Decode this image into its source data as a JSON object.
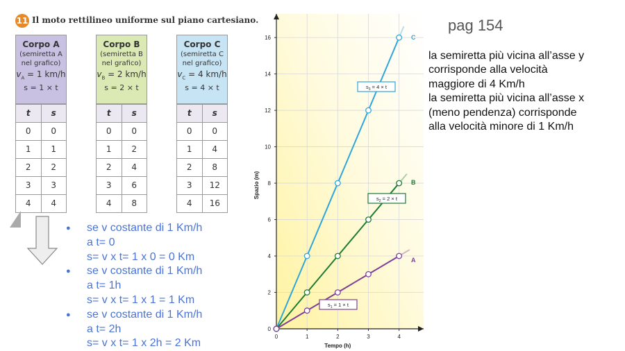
{
  "header": {
    "number": "11",
    "title": "Il moto rettilineo uniforme sul piano cartesiano."
  },
  "tables": [
    {
      "title": "Corpo A",
      "subtitle": [
        "(semiretta A",
        "nel grafico)"
      ],
      "velocity": {
        "symbol": "v",
        "sub": "A",
        "rest": " = 1 km/h"
      },
      "formula": "s = 1 × t",
      "columns": [
        "t",
        "s"
      ],
      "rows": [
        [
          0,
          0
        ],
        [
          1,
          1
        ],
        [
          2,
          2
        ],
        [
          3,
          3
        ],
        [
          4,
          4
        ]
      ],
      "color": "#c9c1e2"
    },
    {
      "title": "Corpo B",
      "subtitle": [
        "(semiretta B",
        "nel grafico)"
      ],
      "velocity": {
        "symbol": "v",
        "sub": "B",
        "rest": " = 2 km/h"
      },
      "formula": "s = 2 × t",
      "columns": [
        "t",
        "s"
      ],
      "rows": [
        [
          0,
          0
        ],
        [
          1,
          2
        ],
        [
          2,
          4
        ],
        [
          3,
          6
        ],
        [
          4,
          8
        ]
      ],
      "color": "#dbe9b4"
    },
    {
      "title": "Corpo C",
      "subtitle": [
        "(semiretta C",
        "nel grafico)"
      ],
      "velocity": {
        "symbol": "v",
        "sub": "C",
        "rest": " = 4 km/h"
      },
      "formula": "s = 4 × t",
      "columns": [
        "t",
        "s"
      ],
      "rows": [
        [
          0,
          0
        ],
        [
          1,
          4
        ],
        [
          2,
          8
        ],
        [
          3,
          12
        ],
        [
          4,
          16
        ]
      ],
      "color": "#c7e4f4"
    }
  ],
  "notes": [
    [
      "se v costante di 1 Km/h",
      "a t= 0",
      "s= v x t= 1 x 0 = 0 Km"
    ],
    [
      "se v costante di 1 Km/h",
      "a t= 1h",
      "s= v x t= 1 x 1 = 1 Km"
    ],
    [
      "se v costante di 1 Km/h",
      "a t= 2h",
      "s= v x t= 1 x 2h = 2 Km"
    ]
  ],
  "page_ref": "pag 154",
  "explanation": [
    "la semiretta più vicina all’asse y",
    "corrisponde alla velocità",
    "maggiore di 4 Km/h",
    "la semiretta più vicina all’asse x",
    "(meno pendenza) corrisponde",
    "alla velocità minore di 1 Km/h"
  ],
  "chart_data": {
    "type": "line",
    "xlabel": "Tempo (h)",
    "ylabel": "Spazio (m)",
    "x": [
      0,
      1,
      2,
      3,
      4
    ],
    "series": [
      {
        "name": "C",
        "color": "#2ea6dc",
        "values": [
          0,
          4,
          8,
          12,
          16
        ],
        "formula": {
          "symbol": "s",
          "sub": "3",
          "rest": " = 4 × t"
        }
      },
      {
        "name": "B",
        "color": "#1f7a35",
        "values": [
          0,
          2,
          4,
          6,
          8
        ],
        "formula": {
          "symbol": "s",
          "sub": "2",
          "rest": " = 2 × t"
        }
      },
      {
        "name": "A",
        "color": "#7d3f97",
        "values": [
          0,
          1,
          2,
          3,
          4
        ],
        "formula": {
          "symbol": "s",
          "sub": "1",
          "rest": " = 1 × t"
        }
      }
    ],
    "xlim": [
      0,
      4.8
    ],
    "ylim": [
      0,
      17.3
    ],
    "xticks": [
      0,
      1,
      2,
      3,
      4
    ],
    "yticks": [
      0,
      2,
      4,
      6,
      8,
      10,
      12,
      14,
      16
    ],
    "grid": true
  }
}
